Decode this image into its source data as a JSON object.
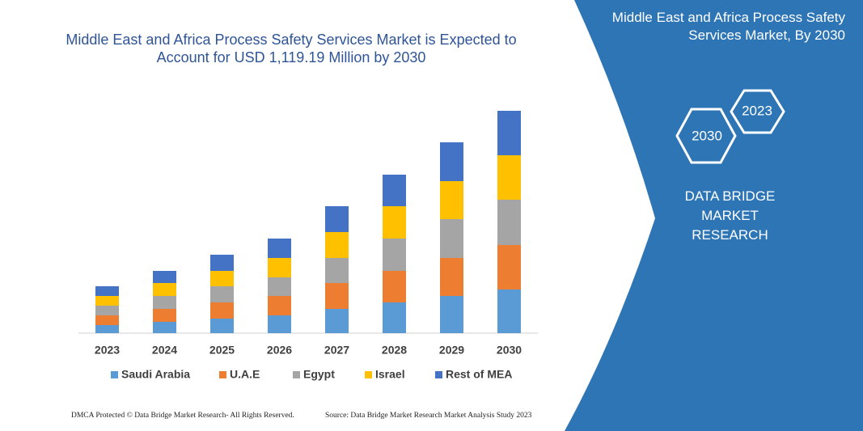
{
  "chart_data": {
    "type": "stacked_bar",
    "title": "Middle East and Africa Process Safety Services Market is Expected to Account for USD 1,119.19 Million by 2030",
    "categories": [
      "2023",
      "2024",
      "2025",
      "2026",
      "2027",
      "2028",
      "2029",
      "2030"
    ],
    "series": [
      {
        "name": "Saudi Arabia",
        "color": "#5b9bd5",
        "values": [
          10,
          14,
          18,
          22,
          30,
          38,
          46,
          54
        ]
      },
      {
        "name": "U.A.E",
        "color": "#ed7d31",
        "values": [
          12,
          16,
          20,
          24,
          32,
          39,
          47,
          55
        ]
      },
      {
        "name": "Egypt",
        "color": "#a5a5a5",
        "values": [
          12,
          16,
          20,
          23,
          31,
          40,
          48,
          56
        ]
      },
      {
        "name": "Israel",
        "color": "#ffc000",
        "values": [
          12,
          16,
          19,
          24,
          32,
          40,
          47,
          55
        ]
      },
      {
        "name": "Rest of MEA",
        "color": "#4472c4",
        "values": [
          12,
          15,
          20,
          24,
          32,
          39,
          48,
          55
        ]
      }
    ],
    "ylim": [
      0,
      275
    ]
  },
  "panel": {
    "title": "Middle East and Africa Process Safety Services Market, By 2030",
    "hex_front": "2030",
    "hex_back": "2023",
    "brand": "DATA BRIDGE MARKET RESEARCH"
  },
  "footer": {
    "left": "DMCA Protected © Data Bridge Market Research- All Rights Reserved.",
    "right": "Source: Data Bridge Market Research Market Analysis Study 2023"
  }
}
